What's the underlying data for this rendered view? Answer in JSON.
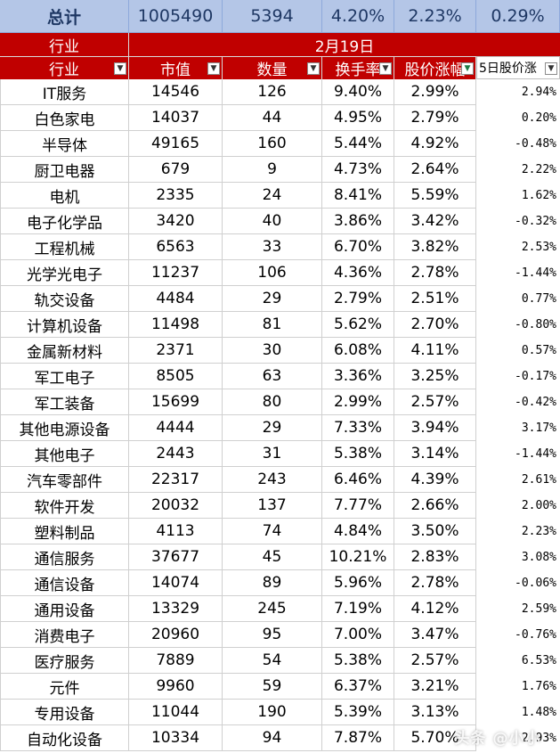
{
  "totals": {
    "label": "总计",
    "market_cap": "1005490",
    "count": "5394",
    "turnover": "4.20%",
    "price_change": "2.23%",
    "five_day": "0.29%"
  },
  "header_top": {
    "industry": "行业",
    "date": "2月19日"
  },
  "columns": [
    {
      "label": "行业",
      "filter": "▼"
    },
    {
      "label": "市值",
      "filter": "▼"
    },
    {
      "label": "数量",
      "filter": "▼"
    },
    {
      "label": "换手率",
      "filter": "▼"
    },
    {
      "label": "股价涨幅",
      "filter": "▼"
    },
    {
      "label": "5日股价涨",
      "filter": "▼"
    }
  ],
  "rows": [
    [
      "IT服务",
      "14546",
      "126",
      "9.40%",
      "2.99%",
      "2.94%"
    ],
    [
      "白色家电",
      "14037",
      "44",
      "4.95%",
      "2.79%",
      "0.20%"
    ],
    [
      "半导体",
      "49165",
      "160",
      "5.44%",
      "4.92%",
      "-0.48%"
    ],
    [
      "厨卫电器",
      "679",
      "9",
      "4.73%",
      "2.64%",
      "2.22%"
    ],
    [
      "电机",
      "2335",
      "24",
      "8.41%",
      "5.59%",
      "1.62%"
    ],
    [
      "电子化学品",
      "3420",
      "40",
      "3.86%",
      "3.42%",
      "-0.32%"
    ],
    [
      "工程机械",
      "6563",
      "33",
      "6.70%",
      "3.82%",
      "2.53%"
    ],
    [
      "光学光电子",
      "11237",
      "106",
      "4.36%",
      "2.78%",
      "-1.44%"
    ],
    [
      "轨交设备",
      "4484",
      "29",
      "2.79%",
      "2.51%",
      "0.77%"
    ],
    [
      "计算机设备",
      "11498",
      "81",
      "5.62%",
      "2.70%",
      "-0.80%"
    ],
    [
      "金属新材料",
      "2371",
      "30",
      "6.08%",
      "4.11%",
      "0.57%"
    ],
    [
      "军工电子",
      "8505",
      "63",
      "3.36%",
      "3.25%",
      "-0.17%"
    ],
    [
      "军工装备",
      "15699",
      "80",
      "2.99%",
      "2.57%",
      "-0.42%"
    ],
    [
      "其他电源设备",
      "4444",
      "29",
      "7.33%",
      "3.94%",
      "3.17%"
    ],
    [
      "其他电子",
      "2443",
      "31",
      "5.38%",
      "3.14%",
      "-1.44%"
    ],
    [
      "汽车零部件",
      "22317",
      "243",
      "6.46%",
      "4.39%",
      "2.61%"
    ],
    [
      "软件开发",
      "20032",
      "137",
      "7.77%",
      "2.66%",
      "2.00%"
    ],
    [
      "塑料制品",
      "4113",
      "74",
      "4.84%",
      "3.50%",
      "2.23%"
    ],
    [
      "通信服务",
      "37677",
      "45",
      "10.21%",
      "2.83%",
      "3.08%"
    ],
    [
      "通信设备",
      "14074",
      "89",
      "5.96%",
      "2.78%",
      "-0.06%"
    ],
    [
      "通用设备",
      "13329",
      "245",
      "7.19%",
      "4.12%",
      "2.59%"
    ],
    [
      "消费电子",
      "20960",
      "95",
      "7.00%",
      "3.47%",
      "-0.76%"
    ],
    [
      "医疗服务",
      "7889",
      "54",
      "5.38%",
      "2.57%",
      "6.53%"
    ],
    [
      "元件",
      "9960",
      "59",
      "6.37%",
      "3.21%",
      "1.76%"
    ],
    [
      "专用设备",
      "11044",
      "190",
      "5.39%",
      "3.13%",
      "1.48%"
    ],
    [
      "自动化设备",
      "10334",
      "94",
      "7.87%",
      "5.70%",
      "2.93%"
    ]
  ],
  "watermark": "头条 @小小"
}
